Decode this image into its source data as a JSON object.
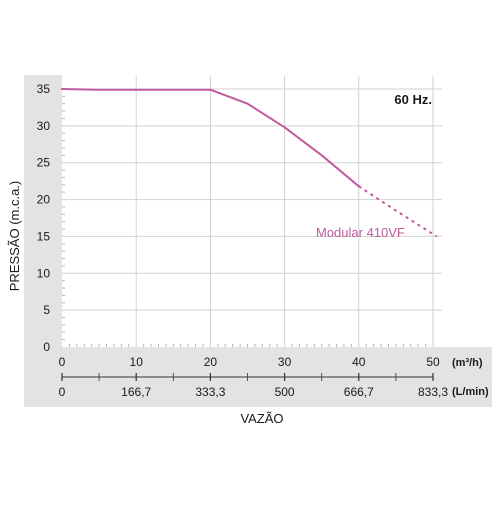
{
  "chart_data": {
    "type": "line",
    "frequency_label": "60 Hz.",
    "ylabel": "PRESSÃO (m.c.a.)",
    "xlabel": "VAZÃO",
    "x_unit_primary": "(m³/h)",
    "x_unit_secondary": "(L/min)",
    "xlim": [
      0,
      50
    ],
    "ylim": [
      0,
      35
    ],
    "y_ticks": [
      0,
      5,
      10,
      15,
      20,
      25,
      30,
      35
    ],
    "x_ticks_primary": [
      {
        "value": 0,
        "label": "0"
      },
      {
        "value": 10,
        "label": "10"
      },
      {
        "value": 20,
        "label": "20"
      },
      {
        "value": 30,
        "label": "30"
      },
      {
        "value": 40,
        "label": "40"
      },
      {
        "value": 50,
        "label": "50"
      }
    ],
    "x_ticks_secondary": [
      {
        "value": 0,
        "label": "0"
      },
      {
        "value": 10,
        "label": "166,7"
      },
      {
        "value": 20,
        "label": "333,3"
      },
      {
        "value": 30,
        "label": "500"
      },
      {
        "value": 40,
        "label": "666,7"
      },
      {
        "value": 50,
        "label": "833,3"
      }
    ],
    "grid": true,
    "series": [
      {
        "name": "Modular 410VF",
        "color": "#c05a9c",
        "solid_points": [
          [
            0,
            35
          ],
          [
            5,
            34.9
          ],
          [
            10,
            34.9
          ],
          [
            15,
            34.9
          ],
          [
            20,
            34.9
          ],
          [
            25,
            33
          ],
          [
            30,
            29.8
          ],
          [
            35,
            26
          ],
          [
            40,
            21.8
          ]
        ],
        "dashed_points": [
          [
            40,
            21.8
          ],
          [
            45,
            18.5
          ],
          [
            50.5,
            15
          ]
        ]
      }
    ],
    "colors": {
      "axis_band": "#e3e3e3",
      "grid": "#d2d2d2",
      "axis_line": "#333333",
      "series": "#c05a9c"
    }
  }
}
